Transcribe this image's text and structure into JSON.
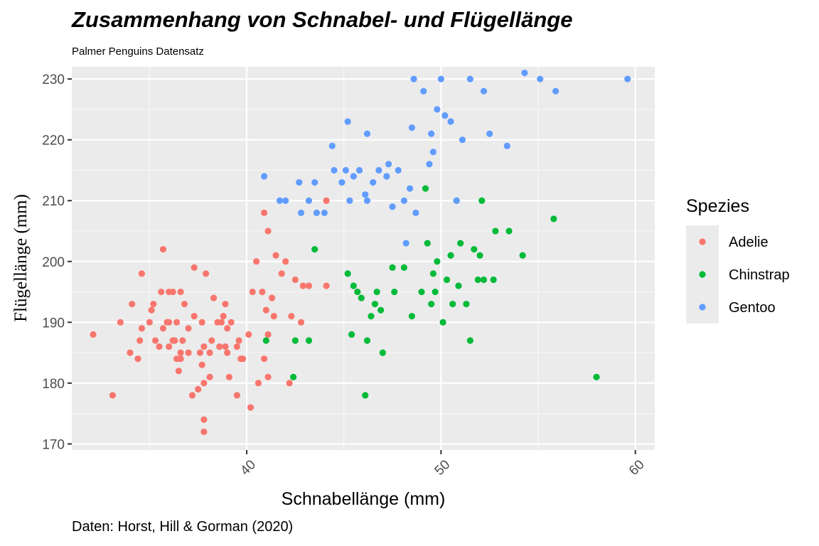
{
  "chart_data": {
    "type": "scatter",
    "title": "Zusammenhang von Schnabel- und Flügellänge",
    "subtitle": "Palmer Penguins Datensatz",
    "caption": "Daten: Horst, Hill & Gorman (2020)",
    "xlabel": "Schnabellänge (mm)",
    "ylabel": "Flügellänge (mm)",
    "xlim": [
      31,
      61
    ],
    "ylim": [
      169,
      232
    ],
    "xticks": [
      40,
      50,
      60
    ],
    "yticks": [
      170,
      180,
      190,
      200,
      210,
      220,
      230
    ],
    "grid": true,
    "legend": {
      "title": "Spezies",
      "position": "right"
    },
    "series": [
      {
        "name": "Adelie",
        "color": "#F8766D",
        "points": [
          [
            32.1,
            188
          ],
          [
            33.1,
            178
          ],
          [
            33.5,
            190
          ],
          [
            34.0,
            185
          ],
          [
            34.1,
            193
          ],
          [
            34.4,
            184
          ],
          [
            34.5,
            187
          ],
          [
            34.6,
            189
          ],
          [
            34.6,
            198
          ],
          [
            35.0,
            190
          ],
          [
            35.1,
            192
          ],
          [
            35.2,
            193
          ],
          [
            35.3,
            187
          ],
          [
            35.5,
            186
          ],
          [
            35.6,
            195
          ],
          [
            35.7,
            189
          ],
          [
            35.7,
            202
          ],
          [
            35.9,
            190
          ],
          [
            36.0,
            186
          ],
          [
            36.0,
            190
          ],
          [
            36.0,
            195
          ],
          [
            36.2,
            187
          ],
          [
            36.2,
            195
          ],
          [
            36.3,
            187
          ],
          [
            36.4,
            184
          ],
          [
            36.5,
            182
          ],
          [
            36.6,
            184
          ],
          [
            36.6,
            185
          ],
          [
            36.6,
            195
          ],
          [
            36.7,
            187
          ],
          [
            36.8,
            193
          ],
          [
            37.0,
            185
          ],
          [
            37.0,
            189
          ],
          [
            37.2,
            178
          ],
          [
            37.3,
            191
          ],
          [
            37.5,
            179
          ],
          [
            37.6,
            185
          ],
          [
            37.7,
            183
          ],
          [
            37.7,
            190
          ],
          [
            37.8,
            172
          ],
          [
            37.8,
            174
          ],
          [
            37.8,
            180
          ],
          [
            37.8,
            186
          ],
          [
            38.1,
            181
          ],
          [
            38.1,
            185
          ],
          [
            38.2,
            187
          ],
          [
            38.3,
            194
          ],
          [
            38.5,
            190
          ],
          [
            38.6,
            186
          ],
          [
            38.7,
            190
          ],
          [
            38.8,
            191
          ],
          [
            38.9,
            186
          ],
          [
            39.0,
            185
          ],
          [
            39.0,
            189
          ],
          [
            39.1,
            181
          ],
          [
            39.2,
            190
          ],
          [
            39.5,
            178
          ],
          [
            39.5,
            186
          ],
          [
            39.6,
            187
          ],
          [
            39.7,
            184
          ],
          [
            39.8,
            184
          ],
          [
            40.1,
            188
          ],
          [
            40.2,
            176
          ],
          [
            40.3,
            195
          ],
          [
            40.5,
            200
          ],
          [
            40.6,
            180
          ],
          [
            40.8,
            195
          ],
          [
            40.9,
            184
          ],
          [
            41.1,
            181
          ],
          [
            41.1,
            188
          ],
          [
            41.3,
            194
          ],
          [
            41.4,
            191
          ],
          [
            41.5,
            201
          ],
          [
            41.8,
            198
          ],
          [
            42.0,
            200
          ],
          [
            42.2,
            180
          ],
          [
            42.3,
            191
          ],
          [
            42.5,
            197
          ],
          [
            42.8,
            190
          ],
          [
            42.9,
            196
          ],
          [
            43.2,
            196
          ],
          [
            44.1,
            196
          ],
          [
            44.1,
            210
          ],
          [
            40.9,
            208
          ],
          [
            41.1,
            205
          ],
          [
            41.0,
            192
          ],
          [
            36.4,
            190
          ],
          [
            38.9,
            193
          ],
          [
            37.3,
            199
          ],
          [
            37.9,
            198
          ]
        ]
      },
      {
        "name": "Chinstrap",
        "color": "#00BA38",
        "points": [
          [
            41.0,
            187
          ],
          [
            42.4,
            181
          ],
          [
            42.5,
            187
          ],
          [
            43.2,
            187
          ],
          [
            43.5,
            202
          ],
          [
            45.2,
            198
          ],
          [
            45.4,
            188
          ],
          [
            45.5,
            196
          ],
          [
            45.7,
            195
          ],
          [
            45.9,
            194
          ],
          [
            46.1,
            178
          ],
          [
            46.2,
            187
          ],
          [
            46.4,
            191
          ],
          [
            46.6,
            193
          ],
          [
            46.7,
            195
          ],
          [
            46.9,
            192
          ],
          [
            47.0,
            185
          ],
          [
            47.5,
            199
          ],
          [
            47.6,
            195
          ],
          [
            48.1,
            199
          ],
          [
            48.5,
            191
          ],
          [
            49.0,
            195
          ],
          [
            49.2,
            212
          ],
          [
            49.3,
            203
          ],
          [
            49.5,
            193
          ],
          [
            49.6,
            198
          ],
          [
            49.8,
            200
          ],
          [
            50.1,
            190
          ],
          [
            50.3,
            197
          ],
          [
            50.5,
            201
          ],
          [
            50.6,
            193
          ],
          [
            50.8,
            210
          ],
          [
            51.0,
            203
          ],
          [
            51.3,
            193
          ],
          [
            51.5,
            187
          ],
          [
            51.9,
            197
          ],
          [
            52.0,
            201
          ],
          [
            52.2,
            197
          ],
          [
            52.7,
            197
          ],
          [
            52.8,
            205
          ],
          [
            53.5,
            205
          ],
          [
            54.2,
            201
          ],
          [
            55.8,
            207
          ],
          [
            58.0,
            181
          ],
          [
            50.9,
            196
          ],
          [
            49.7,
            195
          ],
          [
            52.1,
            210
          ],
          [
            51.7,
            202
          ]
        ]
      },
      {
        "name": "Gentoo",
        "color": "#619CFF",
        "points": [
          [
            40.9,
            214
          ],
          [
            41.7,
            210
          ],
          [
            42.0,
            210
          ],
          [
            42.7,
            213
          ],
          [
            42.8,
            208
          ],
          [
            43.2,
            210
          ],
          [
            43.5,
            213
          ],
          [
            43.6,
            208
          ],
          [
            44.0,
            208
          ],
          [
            44.4,
            219
          ],
          [
            44.5,
            215
          ],
          [
            44.9,
            213
          ],
          [
            45.1,
            215
          ],
          [
            45.2,
            223
          ],
          [
            45.3,
            210
          ],
          [
            45.5,
            214
          ],
          [
            45.8,
            215
          ],
          [
            46.1,
            211
          ],
          [
            46.2,
            210
          ],
          [
            46.5,
            213
          ],
          [
            46.8,
            215
          ],
          [
            47.2,
            214
          ],
          [
            47.5,
            209
          ],
          [
            47.8,
            215
          ],
          [
            48.1,
            210
          ],
          [
            48.4,
            212
          ],
          [
            48.6,
            230
          ],
          [
            48.7,
            208
          ],
          [
            49.1,
            228
          ],
          [
            49.4,
            216
          ],
          [
            49.6,
            218
          ],
          [
            49.8,
            225
          ],
          [
            50.0,
            230
          ],
          [
            50.2,
            224
          ],
          [
            50.5,
            223
          ],
          [
            50.8,
            210
          ],
          [
            51.1,
            220
          ],
          [
            51.5,
            230
          ],
          [
            52.2,
            228
          ],
          [
            52.5,
            221
          ],
          [
            53.4,
            219
          ],
          [
            54.3,
            231
          ],
          [
            55.1,
            230
          ],
          [
            55.9,
            228
          ],
          [
            59.6,
            230
          ],
          [
            46.2,
            221
          ],
          [
            47.3,
            216
          ],
          [
            48.5,
            222
          ],
          [
            49.5,
            221
          ],
          [
            48.2,
            203
          ]
        ]
      }
    ]
  }
}
